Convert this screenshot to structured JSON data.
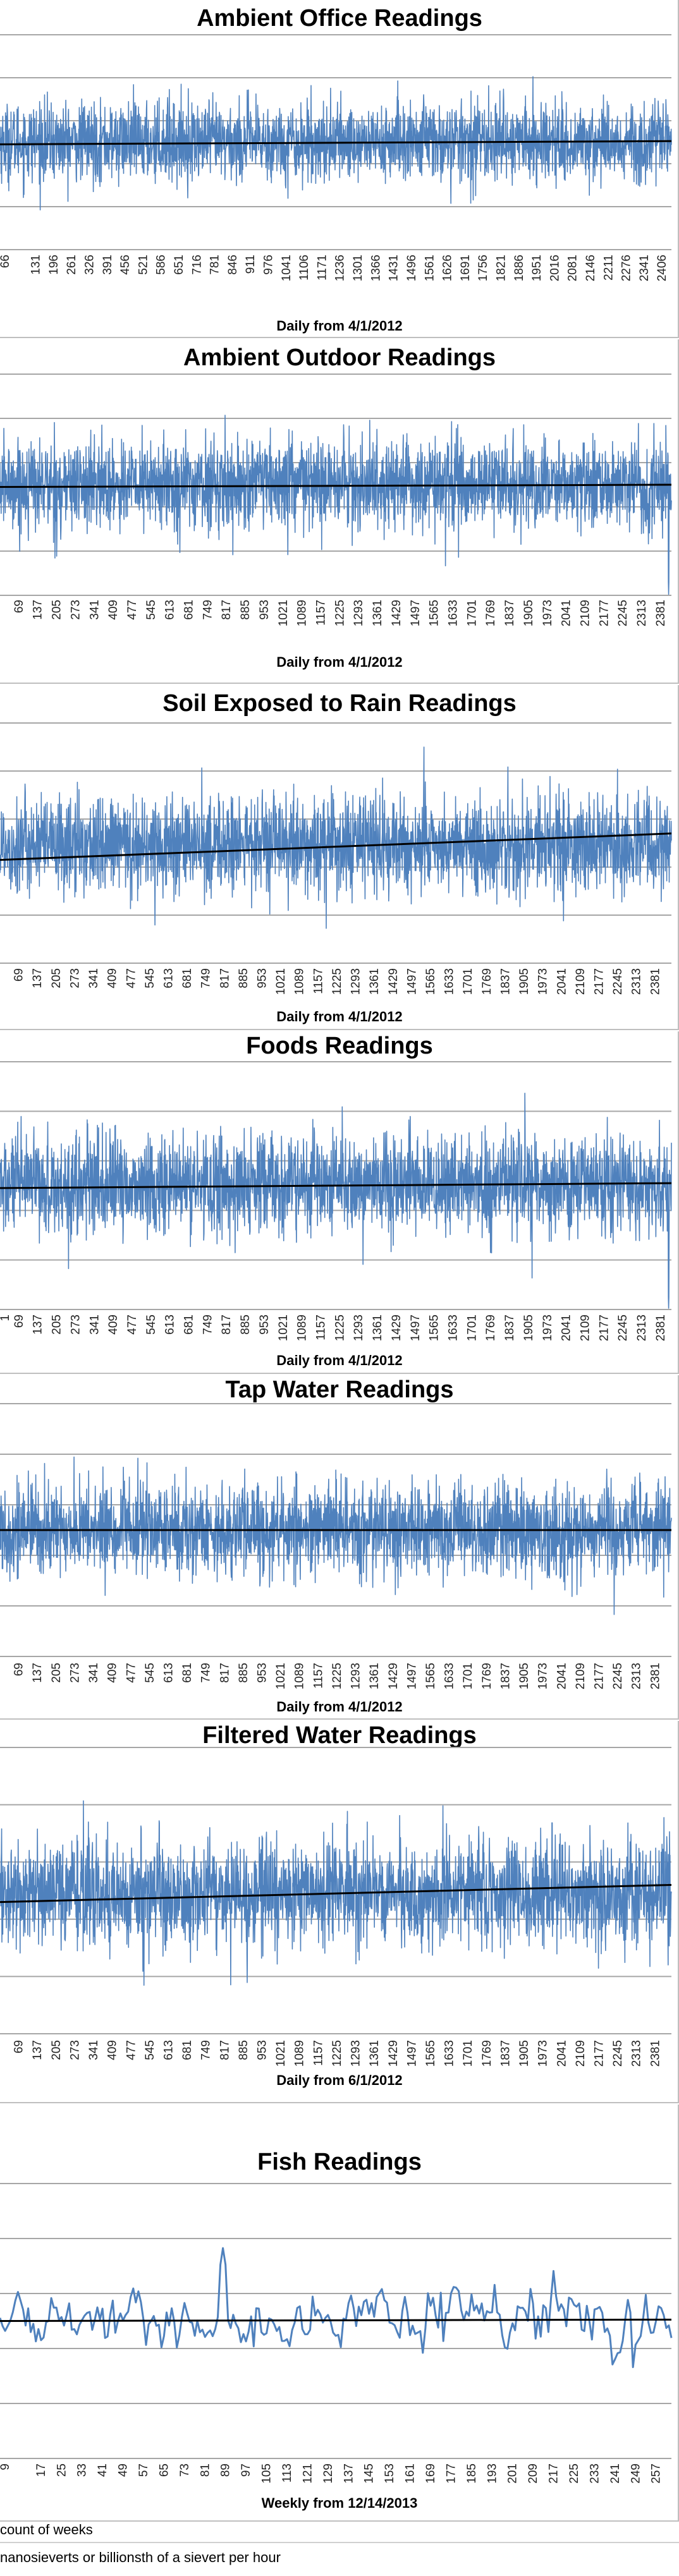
{
  "chart_data": [
    {
      "type": "line",
      "title": "Ambient Office Readings",
      "xlabel": "Daily from 4/1/2012",
      "ylabel": "",
      "x_first_label": "66",
      "xticks": [
        "131",
        "196",
        "261",
        "326",
        "391",
        "456",
        "521",
        "586",
        "651",
        "716",
        "781",
        "846",
        "911",
        "976",
        "1041",
        "1106",
        "1171",
        "1236",
        "1301",
        "1366",
        "1431",
        "1496",
        "1561",
        "1626",
        "1691",
        "1756",
        "1821",
        "1886",
        "1951",
        "2016",
        "2081",
        "2146",
        "2211",
        "2276",
        "2341",
        "2406"
      ],
      "xlim": [
        1,
        2440
      ],
      "ylim": [
        0,
        10
      ],
      "n_points": 2440,
      "mean": 5,
      "sd": 0.9,
      "trend": [
        4.9,
        5.05
      ],
      "grid": true,
      "legend": "none",
      "color": "#4f81bd",
      "trend_color": "#000000"
    },
    {
      "type": "line",
      "title": "Ambient Outdoor Readings",
      "xlabel": "Daily from 4/1/2012",
      "ylabel": "",
      "x_first_label": "",
      "xticks": [
        "69",
        "137",
        "205",
        "273",
        "341",
        "409",
        "477",
        "545",
        "613",
        "681",
        "749",
        "817",
        "885",
        "953",
        "1021",
        "1089",
        "1157",
        "1225",
        "1293",
        "1361",
        "1429",
        "1497",
        "1565",
        "1633",
        "1701",
        "1769",
        "1837",
        "1905",
        "1973",
        "2041",
        "2109",
        "2177",
        "2245",
        "2313",
        "2381"
      ],
      "xlim": [
        1,
        2420
      ],
      "ylim": [
        0,
        10
      ],
      "n_points": 2420,
      "mean": 5,
      "sd": 1.0,
      "trend": [
        4.9,
        5.0
      ],
      "grid": true,
      "legend": "none",
      "color": "#4f81bd",
      "trend_color": "#000000"
    },
    {
      "type": "line",
      "title": "Soil Exposed to Rain Readings",
      "xlabel": "Daily from 4/1/2012",
      "ylabel": "",
      "x_first_label": "",
      "xticks": [
        "69",
        "137",
        "205",
        "273",
        "341",
        "409",
        "477",
        "545",
        "613",
        "681",
        "749",
        "817",
        "885",
        "953",
        "1021",
        "1089",
        "1157",
        "1225",
        "1293",
        "1361",
        "1429",
        "1497",
        "1565",
        "1633",
        "1701",
        "1769",
        "1837",
        "1905",
        "1973",
        "2041",
        "2109",
        "2177",
        "2245",
        "2313",
        "2381"
      ],
      "xlim": [
        1,
        2440
      ],
      "ylim": [
        0,
        10
      ],
      "n_points": 2440,
      "mean": 4.9,
      "sd": 1.0,
      "trend": [
        4.3,
        5.4
      ],
      "grid": true,
      "legend": "none",
      "color": "#4f81bd",
      "trend_color": "#000000"
    },
    {
      "type": "line",
      "title": "Foods Readings",
      "xlabel": "Daily from 4/1/2012",
      "ylabel": "",
      "x_first_label": "1",
      "xticks": [
        "69",
        "137",
        "205",
        "273",
        "341",
        "409",
        "477",
        "545",
        "613",
        "681",
        "749",
        "817",
        "885",
        "953",
        "1021",
        "1089",
        "1157",
        "1225",
        "1293",
        "1361",
        "1429",
        "1497",
        "1565",
        "1633",
        "1701",
        "1769",
        "1837",
        "1905",
        "1973",
        "2041",
        "2109",
        "2177",
        "2245",
        "2313",
        "2381"
      ],
      "xlim": [
        1,
        2420
      ],
      "ylim": [
        0,
        10
      ],
      "n_points": 2420,
      "mean": 5,
      "sd": 1.0,
      "trend": [
        4.9,
        5.1
      ],
      "grid": true,
      "legend": "none",
      "color": "#4f81bd",
      "trend_color": "#000000"
    },
    {
      "type": "line",
      "title": "Tap Water Readings",
      "xlabel": "Daily from 4/1/2012",
      "ylabel": "",
      "x_first_label": "",
      "xticks": [
        "69",
        "137",
        "205",
        "273",
        "341",
        "409",
        "477",
        "545",
        "613",
        "681",
        "749",
        "817",
        "885",
        "953",
        "1021",
        "1089",
        "1157",
        "1225",
        "1293",
        "1361",
        "1429",
        "1497",
        "1565",
        "1633",
        "1701",
        "1769",
        "1837",
        "1905",
        "1973",
        "2041",
        "2109",
        "2177",
        "2245",
        "2313",
        "2381"
      ],
      "xlim": [
        1,
        2440
      ],
      "ylim": [
        0,
        10
      ],
      "n_points": 2440,
      "mean": 5,
      "sd": 0.9,
      "trend": [
        5.0,
        5.0
      ],
      "grid": true,
      "legend": "none",
      "color": "#4f81bd",
      "trend_color": "#000000"
    },
    {
      "type": "line",
      "title": "Filtered Water Readings",
      "xlabel": "Daily from 6/1/2012",
      "ylabel": "",
      "x_first_label": "",
      "xticks": [
        "69",
        "137",
        "205",
        "273",
        "341",
        "409",
        "477",
        "545",
        "613",
        "681",
        "749",
        "817",
        "885",
        "953",
        "1021",
        "1089",
        "1157",
        "1225",
        "1293",
        "1361",
        "1429",
        "1497",
        "1565",
        "1633",
        "1701",
        "1769",
        "1837",
        "1905",
        "1973",
        "2041",
        "2109",
        "2177",
        "2245",
        "2313",
        "2381"
      ],
      "xlim": [
        1,
        2440
      ],
      "ylim": [
        0,
        10
      ],
      "n_points": 2440,
      "mean": 4.9,
      "sd": 0.9,
      "trend": [
        4.6,
        5.2
      ],
      "grid": true,
      "legend": "none",
      "color": "#4f81bd",
      "trend_color": "#000000"
    },
    {
      "type": "line",
      "title": "Fish Readings",
      "xlabel": "Weekly from 12/14/2013",
      "ylabel": "",
      "x_first_label": "9",
      "xticks": [
        "17",
        "25",
        "33",
        "41",
        "49",
        "57",
        "65",
        "73",
        "81",
        "89",
        "97",
        "105",
        "113",
        "121",
        "129",
        "137",
        "145",
        "153",
        "161",
        "169",
        "177",
        "185",
        "193",
        "201",
        "209",
        "217",
        "225",
        "233",
        "241",
        "249",
        "257"
      ],
      "xlim": [
        1,
        263
      ],
      "ylim": [
        0,
        10
      ],
      "n_points": 263,
      "mean": 5.05,
      "sd": 0.8,
      "trend": [
        5.0,
        5.05
      ],
      "grid": true,
      "legend": "none",
      "color": "#4f81bd",
      "trend_color": "#000000"
    }
  ],
  "footnotes": {
    "line1": "count of weeks",
    "line2": "nanosieverts or billionsth of a sievert per hour"
  }
}
